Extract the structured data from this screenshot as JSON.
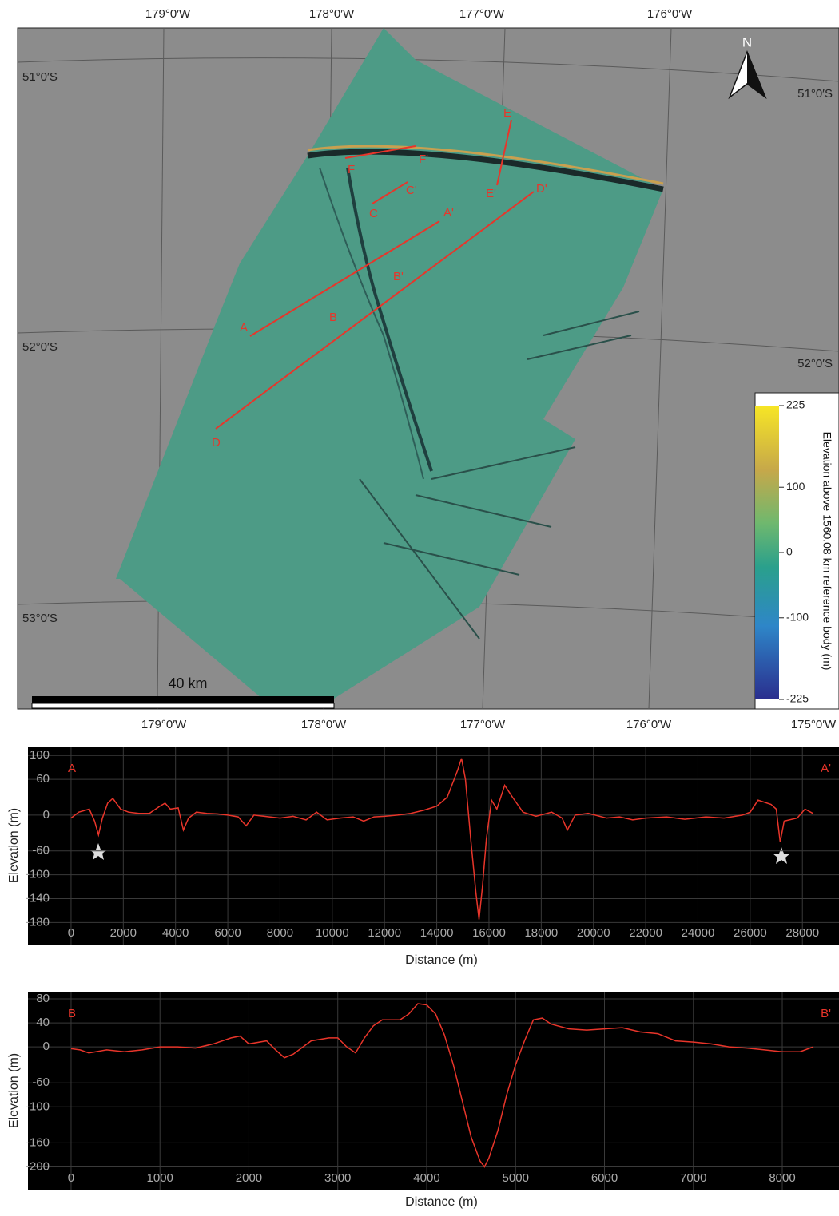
{
  "map": {
    "top_longitudes": [
      "179°0′W",
      "178°0′W",
      "177°0′W",
      "176°0′W"
    ],
    "bottom_longitudes": [
      "179°0′W",
      "178°0′W",
      "177°0′W",
      "176°0′W",
      "175°0′W"
    ],
    "left_latitudes": [
      "51°0′S",
      "52°0′S",
      "53°0′S"
    ],
    "right_latitudes": [
      "51°0′S",
      "52°0′S"
    ],
    "north_label": "N",
    "scale_bar_label": "40 km",
    "profile_labels": [
      "A",
      "A'",
      "B",
      "B'",
      "C",
      "C'",
      "D",
      "D'",
      "E",
      "E'",
      "F",
      "F'"
    ],
    "colorbar": {
      "title": "Elevation above 1560.08 km reference body (m)",
      "range": [
        -225,
        225
      ],
      "ticks": [
        225,
        100,
        0,
        -100,
        -225
      ]
    }
  },
  "chart_data": [
    {
      "type": "line",
      "start_label": "A",
      "end_label": "A'",
      "xlabel": "Distance (m)",
      "ylabel": "Elevation (m)",
      "xlim": [
        -1650,
        29400
      ],
      "ylim": [
        -217,
        115
      ],
      "xticks": [
        0,
        2000,
        4000,
        6000,
        8000,
        10000,
        12000,
        14000,
        16000,
        18000,
        20000,
        22000,
        24000,
        26000,
        28000
      ],
      "yticks": [
        100,
        60,
        0,
        -60,
        -100,
        -140,
        -180
      ],
      "grid": true,
      "x": [
        0,
        300,
        700,
        900,
        1050,
        1200,
        1400,
        1600,
        1900,
        2200,
        2600,
        3000,
        3400,
        3600,
        3800,
        4100,
        4300,
        4500,
        4800,
        5200,
        5600,
        6000,
        6400,
        6700,
        7000,
        7600,
        8000,
        8500,
        9000,
        9400,
        9800,
        10300,
        10800,
        11200,
        11600,
        12000,
        12500,
        13000,
        13500,
        14000,
        14400,
        14800,
        14950,
        15100,
        15300,
        15500,
        15620,
        15750,
        15900,
        16100,
        16300,
        16600,
        16900,
        17300,
        17800,
        18400,
        18800,
        19000,
        19300,
        19800,
        20500,
        21000,
        21500,
        22000,
        22800,
        23500,
        24300,
        25000,
        25700,
        26000,
        26300,
        26800,
        27000,
        27150,
        27300,
        27800,
        28100,
        28400
      ],
      "series": [
        {
          "color": "#e8352a",
          "values": [
            -5,
            5,
            10,
            -10,
            -33,
            -5,
            20,
            28,
            10,
            5,
            3,
            3,
            15,
            20,
            10,
            12,
            -25,
            -5,
            5,
            3,
            2,
            0,
            -3,
            -18,
            0,
            -3,
            -5,
            -2,
            -8,
            5,
            -8,
            -5,
            -3,
            -10,
            -3,
            -2,
            0,
            3,
            8,
            15,
            30,
            75,
            95,
            60,
            -40,
            -130,
            -175,
            -120,
            -40,
            25,
            10,
            50,
            30,
            5,
            -2,
            5,
            -5,
            -25,
            0,
            3,
            -5,
            -3,
            -8,
            -5,
            -3,
            -7,
            -3,
            -5,
            0,
            5,
            25,
            18,
            10,
            -45,
            -10,
            -5,
            10,
            3
          ]
        }
      ]
    },
    {
      "type": "line",
      "start_label": "B",
      "end_label": "B'",
      "xlabel": "Distance (m)",
      "ylabel": "Elevation (m)",
      "xlim": [
        -485,
        8638
      ],
      "ylim": [
        -238,
        92
      ],
      "xticks": [
        0,
        1000,
        2000,
        3000,
        4000,
        5000,
        6000,
        7000,
        8000
      ],
      "yticks": [
        80,
        40,
        0,
        -60,
        -100,
        -160,
        -200
      ],
      "grid": true,
      "x": [
        0,
        100,
        200,
        400,
        600,
        800,
        1000,
        1200,
        1400,
        1600,
        1800,
        1900,
        2000,
        2200,
        2300,
        2400,
        2500,
        2700,
        2900,
        3000,
        3100,
        3200,
        3300,
        3400,
        3500,
        3700,
        3800,
        3900,
        4000,
        4100,
        4200,
        4300,
        4400,
        4500,
        4600,
        4650,
        4700,
        4800,
        4900,
        5000,
        5100,
        5200,
        5300,
        5400,
        5600,
        5800,
        6000,
        6200,
        6400,
        6600,
        6800,
        7000,
        7200,
        7400,
        7600,
        7800,
        8000,
        8200,
        8350
      ],
      "series": [
        {
          "color": "#e8352a",
          "values": [
            -3,
            -5,
            -10,
            -5,
            -8,
            -5,
            0,
            0,
            -2,
            5,
            15,
            18,
            5,
            10,
            -5,
            -18,
            -12,
            10,
            15,
            15,
            0,
            -10,
            15,
            35,
            45,
            45,
            55,
            72,
            70,
            55,
            20,
            -30,
            -90,
            -150,
            -190,
            -200,
            -185,
            -140,
            -80,
            -30,
            10,
            45,
            48,
            38,
            30,
            28,
            30,
            32,
            25,
            22,
            10,
            8,
            5,
            0,
            -2,
            -5,
            -8,
            -8,
            0
          ]
        }
      ]
    }
  ]
}
